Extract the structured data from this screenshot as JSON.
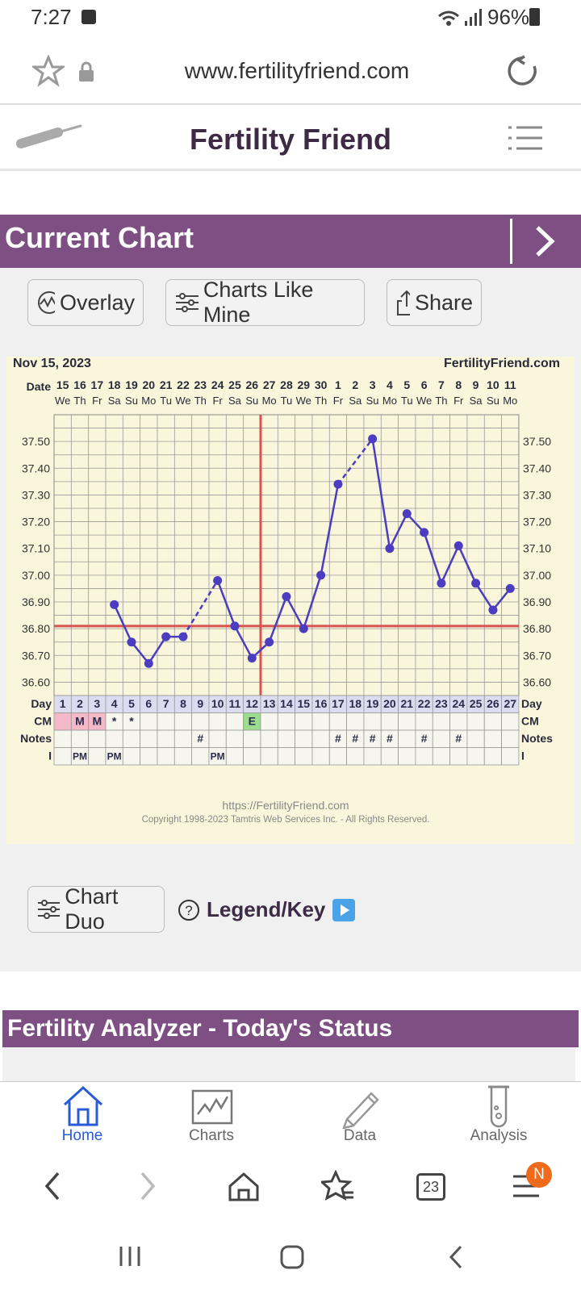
{
  "status": {
    "time": "7:27",
    "battery": "96%"
  },
  "browser": {
    "url": "www.fertilityfriend.com",
    "tab_count": "23",
    "menu_badge": "N"
  },
  "app": {
    "title": "Fertility Friend"
  },
  "current_chart": {
    "heading": "Current Chart",
    "buttons": {
      "overlay": "Overlay",
      "charts_like_mine": "Charts Like Mine",
      "share": "Share",
      "chart_duo": "Chart Duo",
      "legend": "Legend/Key"
    }
  },
  "chart_data": {
    "type": "line",
    "header_left": "Nov 15, 2023",
    "header_right": "FertilityFriend.com",
    "footer_url": "https://FertilityFriend.com",
    "footer_copyright": "Copyright 1998-2023 Tamtris Web Services Inc. - All Rights Reserved.",
    "row_label_date": "Date",
    "row_label_day": "Day",
    "row_label_cm": "CM",
    "row_label_notes": "Notes",
    "row_label_i": "I",
    "dates": [
      "15",
      "16",
      "17",
      "18",
      "19",
      "20",
      "21",
      "22",
      "23",
      "24",
      "25",
      "26",
      "27",
      "28",
      "29",
      "30",
      "1",
      "2",
      "3",
      "4",
      "5",
      "6",
      "7",
      "8",
      "9",
      "10",
      "11"
    ],
    "weekdays": [
      "We",
      "Th",
      "Fr",
      "Sa",
      "Su",
      "Mo",
      "Tu",
      "We",
      "Th",
      "Fr",
      "Sa",
      "Su",
      "Mo",
      "Tu",
      "We",
      "Th",
      "Fr",
      "Sa",
      "Su",
      "Mo",
      "Tu",
      "We",
      "Th",
      "Fr",
      "Sa",
      "Su",
      "Mo"
    ],
    "days": [
      1,
      2,
      3,
      4,
      5,
      6,
      7,
      8,
      9,
      10,
      11,
      12,
      13,
      14,
      15,
      16,
      17,
      18,
      19,
      20,
      21,
      22,
      23,
      24,
      25,
      26,
      27
    ],
    "y_ticks": [
      "37.50",
      "37.40",
      "37.30",
      "37.20",
      "37.10",
      "37.00",
      "36.90",
      "36.80",
      "36.70",
      "36.60"
    ],
    "ylim": [
      36.55,
      37.6
    ],
    "temps": [
      null,
      null,
      null,
      36.89,
      36.75,
      36.67,
      36.77,
      36.77,
      null,
      36.98,
      36.81,
      36.69,
      36.75,
      36.92,
      36.8,
      37.0,
      37.34,
      null,
      37.51,
      37.1,
      37.23,
      37.16,
      36.97,
      37.11,
      36.97,
      36.87,
      36.95
    ],
    "coverline": 36.81,
    "ovulation_day": 13,
    "cm": [
      "",
      "M",
      "M",
      "*",
      "*",
      "",
      "",
      "",
      "",
      "",
      "",
      "E",
      "",
      "",
      "",
      "",
      "",
      "",
      "",
      "",
      "",
      "",
      "",
      "",
      "",
      "",
      ""
    ],
    "notes": [
      "",
      "",
      "",
      "",
      "",
      "",
      "",
      "",
      "#",
      "",
      "",
      "",
      "",
      "",
      "",
      "",
      "#",
      "#",
      "#",
      "#",
      "",
      "#",
      "",
      "#",
      "",
      "",
      ""
    ],
    "intercourse": [
      "",
      "PM",
      "",
      "PM",
      "",
      "",
      "",
      "",
      "",
      "PM",
      "",
      "",
      "",
      "",
      "",
      "",
      "",
      "",
      "",
      "",
      "",
      "",
      "",
      "",
      "",
      "",
      ""
    ],
    "colors": {
      "temp_line": "#4b3cc0",
      "coverline": "#d9534f",
      "ovulation_line": "#d9534f",
      "menses": "#f4b8c8",
      "egg_white": "#9bdc8e"
    }
  },
  "fertility_analyzer": {
    "heading": "Fertility Analyzer - Today's Status"
  },
  "tabs": [
    {
      "label": "Home",
      "icon": "home-icon",
      "active": true
    },
    {
      "label": "Charts",
      "icon": "chart-icon",
      "active": false
    },
    {
      "label": "Data",
      "icon": "pencil-icon",
      "active": false
    },
    {
      "label": "Analysis",
      "icon": "test-tube-icon",
      "active": false
    }
  ]
}
